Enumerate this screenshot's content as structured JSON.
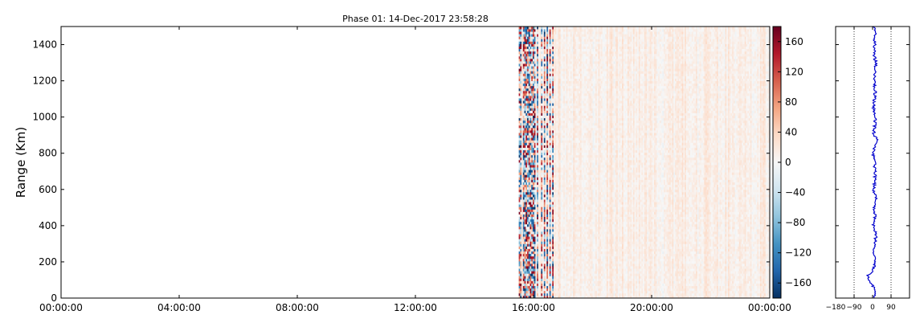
{
  "chart_data": [
    {
      "type": "heatmap",
      "title": "Phase 01: 14-Dec-2017 23:58:28",
      "xlabel": "",
      "ylabel": "Range (Km)",
      "x_ticks": [
        "00:00:00",
        "04:00:00",
        "08:00:00",
        "12:00:00",
        "16:00:00",
        "20:00:00",
        "00:00:00"
      ],
      "y_ticks": [
        0,
        200,
        400,
        600,
        800,
        1000,
        1200,
        1400
      ],
      "xlim": [
        "00:00:00",
        "00:00:00"
      ],
      "ylim": [
        0,
        1500
      ],
      "data_start": "15:30:00",
      "data_end": "00:00:00",
      "noisy_until": "16:40:00",
      "colormap": "RdBu_r",
      "colorbar": {
        "vmin": -180,
        "vmax": 180,
        "ticks": [
          160,
          120,
          80,
          40,
          0,
          -40,
          -80,
          -120,
          -160
        ]
      },
      "grid": false
    },
    {
      "type": "line",
      "title": "",
      "xlabel": "",
      "ylabel": "",
      "xlim": [
        -180,
        180
      ],
      "ylim": [
        0,
        1500
      ],
      "x_ticks": [
        -180,
        -90,
        0,
        90
      ],
      "reference_lines_x": [
        -90,
        90
      ],
      "series": [
        {
          "color": "#0000cc",
          "description_mean_phase": 10,
          "range_km": [
            0,
            50,
            100,
            120,
            150,
            200,
            250,
            300,
            350,
            400,
            450,
            500,
            550,
            600,
            650,
            700,
            750,
            800,
            850,
            875,
            900,
            950,
            1000,
            1050,
            1100,
            1150,
            1200,
            1250,
            1300,
            1350,
            1400,
            1450,
            1500
          ],
          "phase_deg": [
            12,
            8,
            -15,
            -25,
            2,
            14,
            6,
            10,
            18,
            4,
            12,
            9,
            16,
            5,
            11,
            14,
            8,
            3,
            12,
            30,
            6,
            10,
            15,
            5,
            9,
            13,
            7,
            11,
            16,
            6,
            10,
            12,
            8
          ]
        }
      ]
    }
  ]
}
